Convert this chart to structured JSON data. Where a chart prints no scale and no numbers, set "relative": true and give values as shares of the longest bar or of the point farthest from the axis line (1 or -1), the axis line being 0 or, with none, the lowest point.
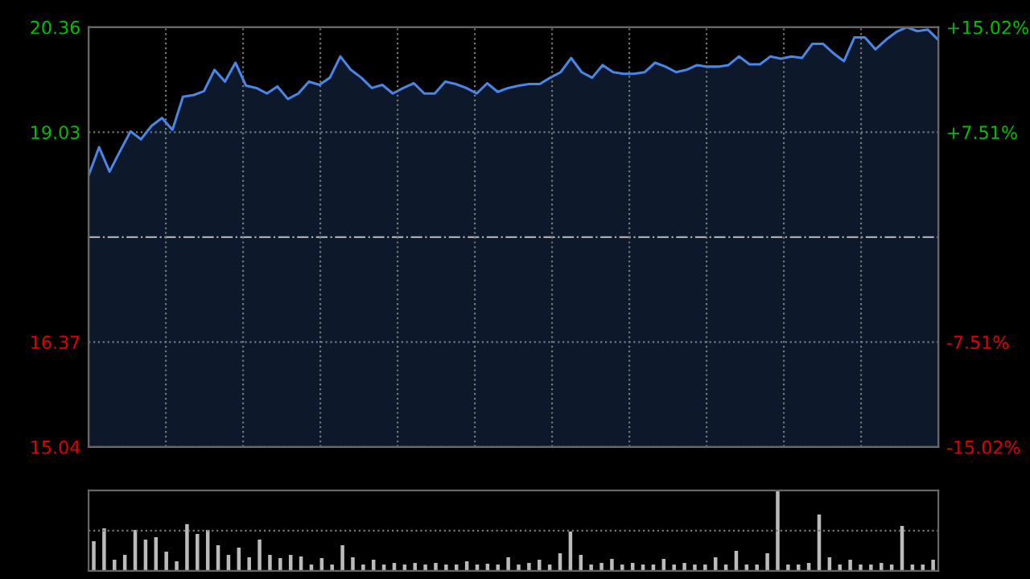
{
  "chart_data": [
    {
      "type": "area",
      "categories": [
        null,
        null,
        null,
        null,
        null,
        null,
        null,
        null,
        null,
        null,
        null,
        null,
        null,
        null,
        null,
        null,
        null,
        null,
        null,
        null,
        null,
        null,
        null,
        null,
        null,
        null,
        null,
        null,
        null,
        null,
        null,
        null,
        null,
        null,
        null,
        null,
        null,
        null,
        null,
        null,
        null,
        null,
        null,
        null,
        null,
        null,
        null,
        null,
        null,
        null,
        null,
        null,
        null,
        null,
        null,
        null,
        null,
        null,
        null,
        null,
        null,
        null,
        null,
        null,
        null,
        null,
        null,
        null,
        null,
        null,
        null,
        null,
        null,
        null,
        null,
        null,
        null,
        null,
        null,
        null,
        null,
        null
      ],
      "series": [
        {
          "color": "#4a86e8",
          "values": [
            18.48,
            18.84,
            18.53,
            18.79,
            19.04,
            18.94,
            19.11,
            19.21,
            19.06,
            19.48,
            19.5,
            19.55,
            19.82,
            19.67,
            19.91,
            19.62,
            19.59,
            19.52,
            19.61,
            19.45,
            19.52,
            19.67,
            19.63,
            19.72,
            19.99,
            19.82,
            19.72,
            19.59,
            19.63,
            19.52,
            19.59,
            19.65,
            19.52,
            19.52,
            19.67,
            19.64,
            19.59,
            19.52,
            19.65,
            19.54,
            19.59,
            19.62,
            19.64,
            19.64,
            19.72,
            19.79,
            19.97,
            19.79,
            19.72,
            19.88,
            19.79,
            19.77,
            19.77,
            19.79,
            19.91,
            19.86,
            19.79,
            19.82,
            19.88,
            19.86,
            19.86,
            19.88,
            19.99,
            19.89,
            19.89,
            19.99,
            19.96,
            19.99,
            19.97,
            20.15,
            20.15,
            20.03,
            19.93,
            20.23,
            20.23,
            20.08,
            20.2,
            20.3,
            20.36,
            20.31,
            20.33,
            20.2
          ]
        }
      ],
      "ylim": [
        15.04,
        20.36
      ],
      "yticks": [
        15.04,
        16.37,
        19.03,
        20.36
      ],
      "y2lim": [
        -15.02,
        15.02
      ],
      "y2ticks": [
        {
          "value": -15.02,
          "label": "-15.02%"
        },
        {
          "value": -7.51,
          "label": "-7.51%"
        },
        {
          "value": 7.51,
          "label": "+7.51%"
        },
        {
          "value": 15.02,
          "label": "+15.02%"
        }
      ],
      "ref_lines": [
        {
          "axis": "y",
          "value": 17.7,
          "color": "#aaaaaa",
          "line_style": "dashdot"
        }
      ],
      "grid": true,
      "tick_labels": "y"
    },
    {
      "type": "bar",
      "relative": true,
      "tick_labels": false,
      "ref_lines": [
        {
          "axis": "y",
          "value": 0.5,
          "color": "#777777",
          "line_style": "dotted"
        }
      ],
      "categories": [
        null,
        null,
        null,
        null,
        null,
        null,
        null,
        null,
        null,
        null,
        null,
        null,
        null,
        null,
        null,
        null,
        null,
        null,
        null,
        null,
        null,
        null,
        null,
        null,
        null,
        null,
        null,
        null,
        null,
        null,
        null,
        null,
        null,
        null,
        null,
        null,
        null,
        null,
        null,
        null,
        null,
        null,
        null,
        null,
        null,
        null,
        null,
        null,
        null,
        null,
        null,
        null,
        null,
        null,
        null,
        null,
        null,
        null,
        null,
        null,
        null,
        null,
        null,
        null,
        null,
        null,
        null,
        null,
        null,
        null,
        null,
        null,
        null,
        null,
        null,
        null,
        null,
        null,
        null,
        null,
        null,
        null
      ],
      "series": [
        {
          "color": "#bbbbbb",
          "values": [
            0.37,
            0.53,
            0.14,
            0.2,
            0.51,
            0.39,
            0.42,
            0.24,
            0.12,
            0.58,
            0.46,
            0.51,
            0.32,
            0.2,
            0.29,
            0.17,
            0.39,
            0.2,
            0.16,
            0.2,
            0.18,
            0.08,
            0.16,
            0.08,
            0.32,
            0.17,
            0.08,
            0.14,
            0.08,
            0.1,
            0.08,
            0.1,
            0.08,
            0.1,
            0.08,
            0.08,
            0.12,
            0.08,
            0.09,
            0.08,
            0.17,
            0.08,
            0.1,
            0.14,
            0.08,
            0.22,
            0.49,
            0.2,
            0.08,
            0.1,
            0.15,
            0.08,
            0.1,
            0.08,
            0.08,
            0.15,
            0.08,
            0.1,
            0.08,
            0.08,
            0.17,
            0.08,
            0.25,
            0.08,
            0.08,
            0.22,
            1,
            0.08,
            0.08,
            0.1,
            0.7,
            0.17,
            0.08,
            0.14,
            0.08,
            0.08,
            0.1,
            0.08,
            0.56,
            0.08,
            0.08,
            0.14
          ]
        }
      ]
    }
  ]
}
